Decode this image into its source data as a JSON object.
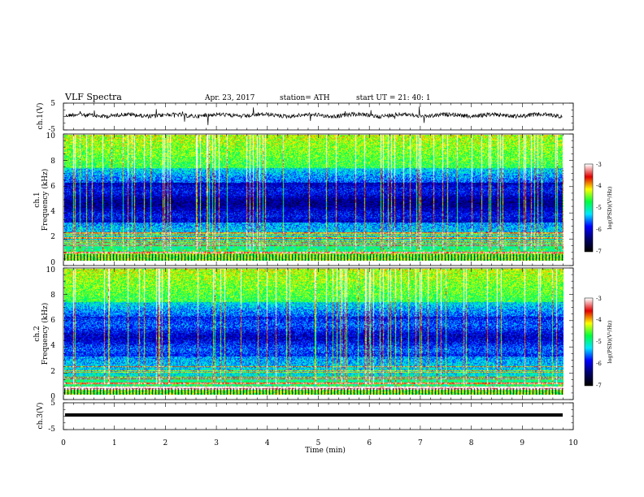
{
  "header": {
    "title": "VLF  Spectra",
    "date": "Apr. 23, 2017",
    "station": "station= ATH",
    "start": "start  UT  =    21: 40: 1"
  },
  "colors": {
    "trace": "#000000",
    "colormap": [
      "#ffffff",
      "#e00000",
      "#ffff00",
      "#00ff40",
      "#00e8ff",
      "#0000ff",
      "#00006a",
      "#000000"
    ]
  },
  "chart_data": [
    {
      "type": "line",
      "name": "ch1-waveform",
      "ylabel": "ch.1(V)",
      "ylim": [
        -5,
        5
      ],
      "yticks": [
        "5",
        "-5"
      ],
      "xlim": [
        0,
        10
      ]
    },
    {
      "type": "heatmap",
      "name": "ch1-spectrogram",
      "ylabel": "ch.1\nFrequency  (kHz)",
      "ylim": [
        0,
        10
      ],
      "yticks": [
        "0",
        "2",
        "4",
        "6",
        "8",
        "10"
      ],
      "xlim": [
        0,
        10
      ],
      "colorbar": {
        "label": "log(PSD)(V²/Hz)",
        "range": [
          -7,
          -3
        ],
        "ticks": [
          "-3",
          "-4",
          "-5",
          "-6",
          "-7"
        ]
      }
    },
    {
      "type": "heatmap",
      "name": "ch2-spectrogram",
      "ylabel": "ch.2\nFrequency  (kHz)",
      "ylim": [
        0,
        10
      ],
      "yticks": [
        "0",
        "2",
        "4",
        "6",
        "8",
        "10"
      ],
      "xlim": [
        0,
        10
      ],
      "colorbar": {
        "label": "log(PSD)(V²/Hz)",
        "range": [
          -7,
          -3
        ],
        "ticks": [
          "-3",
          "-4",
          "-5",
          "-6",
          "-7"
        ]
      }
    },
    {
      "type": "line",
      "name": "ch3-waveform",
      "ylabel": "ch.3(V)",
      "ylim": [
        -5,
        5
      ],
      "yticks": [
        "5",
        "-5"
      ],
      "xlim": [
        0,
        10
      ],
      "xlabel": "Time  (min)",
      "xticks": [
        "0",
        "1",
        "2",
        "3",
        "4",
        "5",
        "6",
        "7",
        "8",
        "9",
        "10"
      ]
    }
  ]
}
